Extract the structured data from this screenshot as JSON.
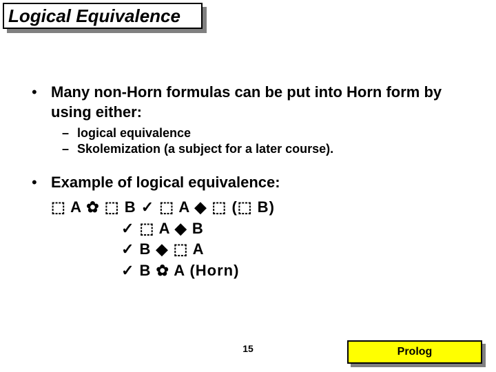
{
  "title": "Logical Equivalence",
  "bullets": [
    {
      "text": "Many non-Horn formulas can be put into Horn form by using either:",
      "subs": [
        "logical equivalence",
        "Skolemization (a subject for a later course)."
      ]
    },
    {
      "text": "Example of logical equivalence:",
      "formulas": [
        "⬚ A ✿ ⬚ B ✓ ⬚ A ◆ ⬚ (⬚ B)",
        "✓ ⬚ A ◆ B",
        "✓ B ◆ ⬚ A",
        "✓ B ✿ A   (Horn)"
      ]
    }
  ],
  "page_number": "15",
  "footer": "Prolog",
  "colors": {
    "background": "#ffffff",
    "text": "#000000",
    "shadow": "#808080",
    "footer_bg": "#ffff00",
    "border": "#000000"
  }
}
